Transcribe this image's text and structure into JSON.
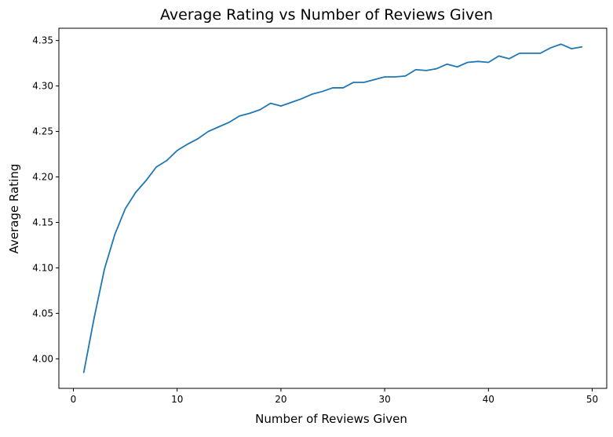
{
  "chart_data": {
    "type": "line",
    "title": "Average Rating vs Number of Reviews Given",
    "xlabel": "Number of Reviews Given",
    "ylabel": "Average Rating",
    "xlim": [
      -1.4,
      51.4
    ],
    "ylim": [
      3.9675,
      4.3635
    ],
    "xticks": [
      0,
      10,
      20,
      30,
      40,
      50
    ],
    "yticks": [
      4.0,
      4.05,
      4.1,
      4.15,
      4.2,
      4.25,
      4.3,
      4.35
    ],
    "ytick_labels": [
      "4.00",
      "4.05",
      "4.10",
      "4.15",
      "4.20",
      "4.25",
      "4.30",
      "4.35"
    ],
    "xtick_labels": [
      "0",
      "10",
      "20",
      "30",
      "40",
      "50"
    ],
    "grid": false,
    "series": [
      {
        "color": "#1f77b4",
        "x": [
          1,
          2,
          3,
          4,
          5,
          6,
          7,
          8,
          9,
          10,
          11,
          12,
          13,
          14,
          15,
          16,
          17,
          18,
          19,
          20,
          21,
          22,
          23,
          24,
          25,
          26,
          27,
          28,
          29,
          30,
          31,
          32,
          33,
          34,
          35,
          36,
          37,
          38,
          39,
          40,
          41,
          42,
          43,
          44,
          45,
          46,
          47,
          48,
          49
        ],
        "y": [
          3.985,
          4.045,
          4.099,
          4.137,
          4.165,
          4.183,
          4.196,
          4.211,
          4.218,
          4.229,
          4.236,
          4.242,
          4.25,
          4.255,
          4.26,
          4.267,
          4.27,
          4.274,
          4.281,
          4.278,
          4.282,
          4.286,
          4.291,
          4.294,
          4.298,
          4.298,
          4.304,
          4.304,
          4.307,
          4.31,
          4.31,
          4.311,
          4.318,
          4.317,
          4.319,
          4.324,
          4.321,
          4.326,
          4.327,
          4.326,
          4.333,
          4.33,
          4.336,
          4.336,
          4.336,
          4.342,
          4.346,
          4.341,
          4.343
        ]
      }
    ]
  }
}
